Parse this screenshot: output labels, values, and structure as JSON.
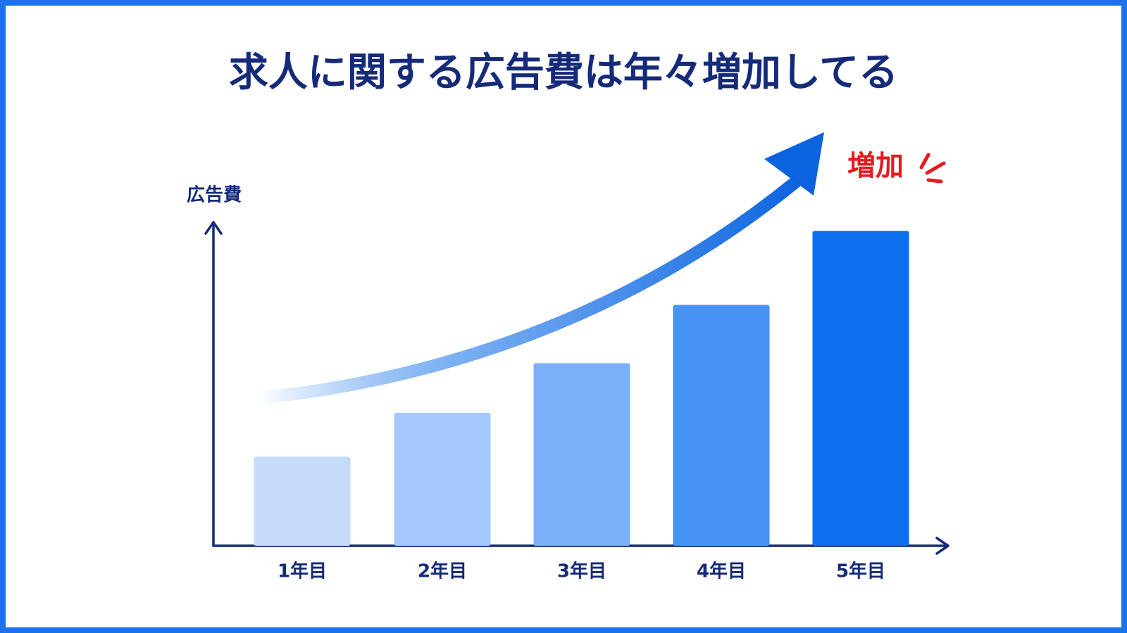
{
  "chart_data": {
    "type": "bar",
    "title": "求人に関する広告費は年々増加してる",
    "y_label": "広告費",
    "annotation": "増加",
    "categories": [
      "1年目",
      "2年目",
      "3年目",
      "4年目",
      "5年目"
    ],
    "values": [
      124,
      185,
      254,
      335,
      438
    ],
    "colors": [
      "#c5dbf9",
      "#a3c8fa",
      "#7ab0f7",
      "#4793f4",
      "#0b6ff0"
    ],
    "ylim": [
      0,
      450
    ],
    "grid": false
  }
}
